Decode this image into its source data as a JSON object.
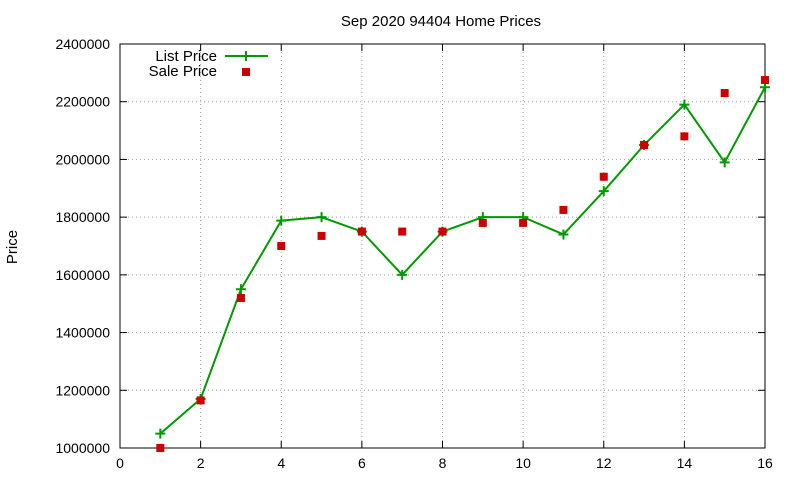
{
  "chart_data": {
    "type": "line",
    "title": "Sep 2020 94404 Home Prices",
    "xlabel": "",
    "ylabel": "Price",
    "xlim": [
      0,
      16
    ],
    "ylim": [
      1000000,
      2400000
    ],
    "x_ticks": [
      0,
      2,
      4,
      6,
      8,
      10,
      12,
      14,
      16
    ],
    "y_ticks": [
      1000000,
      1200000,
      1400000,
      1600000,
      1800000,
      2000000,
      2200000,
      2400000
    ],
    "x_tick_labels": [
      "0",
      "2",
      "4",
      "6",
      "8",
      "10",
      "12",
      "14",
      "16"
    ],
    "y_tick_labels": [
      "1000000",
      "1200000",
      "1400000",
      "1600000",
      "1800000",
      "2000000",
      "2200000",
      "2400000"
    ],
    "grid": true,
    "legend_position": "top-left",
    "series": [
      {
        "name": "List Price",
        "style": "line-with-plus-markers",
        "color": "#009900",
        "x": [
          1,
          2,
          3,
          4,
          5,
          6,
          7,
          8,
          9,
          10,
          11,
          12,
          13,
          14,
          15,
          16
        ],
        "y": [
          1050000,
          1170000,
          1550000,
          1788000,
          1800000,
          1750000,
          1600000,
          1750000,
          1800000,
          1800000,
          1740000,
          1890000,
          2050000,
          2190000,
          1990000,
          2250000
        ]
      },
      {
        "name": "Sale Price",
        "style": "square-markers",
        "color": "#cc0000",
        "x": [
          1,
          2,
          3,
          4,
          5,
          6,
          7,
          8,
          9,
          10,
          11,
          12,
          13,
          14,
          15,
          16
        ],
        "y": [
          1000000,
          1165000,
          1520000,
          1700000,
          1735000,
          1750000,
          1750000,
          1750000,
          1780000,
          1780000,
          1825000,
          1940000,
          2050000,
          2080000,
          2230000,
          2275000
        ]
      }
    ]
  }
}
